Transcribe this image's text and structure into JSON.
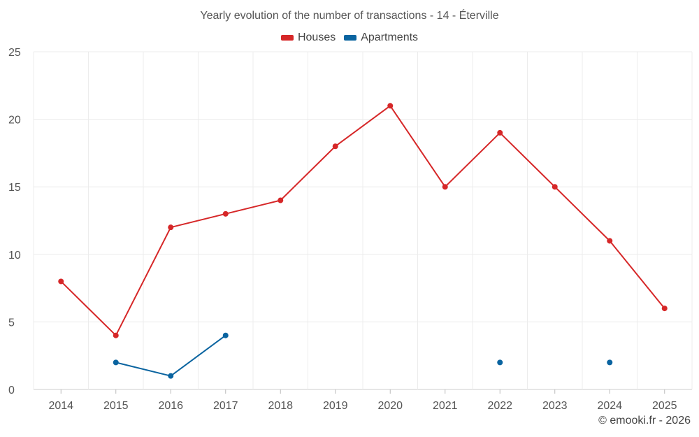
{
  "chart_data": {
    "type": "line",
    "title": "Yearly evolution of the number of transactions - 14 - Éterville",
    "categories": [
      "2014",
      "2015",
      "2016",
      "2017",
      "2018",
      "2019",
      "2020",
      "2021",
      "2022",
      "2023",
      "2024",
      "2025"
    ],
    "series": [
      {
        "name": "Houses",
        "color": "#d62728",
        "values": [
          8,
          4,
          12,
          13,
          14,
          18,
          21,
          15,
          19,
          15,
          11,
          6
        ]
      },
      {
        "name": "Apartments",
        "color": "#0a64a0",
        "values": [
          null,
          2,
          1,
          4,
          null,
          null,
          null,
          null,
          2,
          null,
          2,
          null
        ]
      }
    ],
    "yticks": [
      0,
      5,
      10,
      15,
      20,
      25
    ],
    "ylim": [
      0,
      25
    ],
    "xlabel": "",
    "ylabel": "",
    "grid": true,
    "legend": "top-center"
  },
  "footer": {
    "credit": "© emooki.fr - 2026"
  }
}
